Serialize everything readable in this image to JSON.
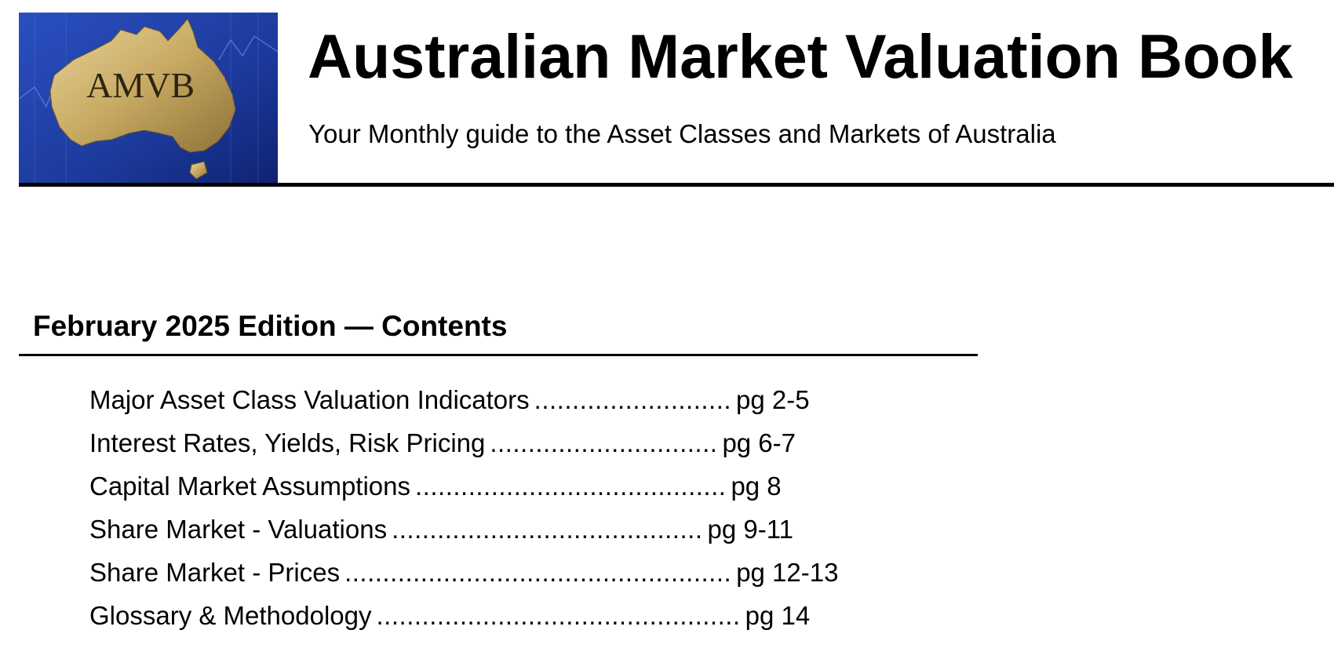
{
  "header": {
    "logo_text": "AMVB",
    "title": "Australian Market Valuation Book",
    "subtitle": "Your Monthly guide to the Asset Classes and Markets of Australia"
  },
  "contents": {
    "heading": "February 2025 Edition — Contents",
    "items": [
      {
        "title": "Major Asset Class Valuation Indicators",
        "dots": "..........................",
        "page": "pg 2-5"
      },
      {
        "title": "Interest Rates, Yields, Risk Pricing",
        "dots": "..............................",
        "page": "pg 6-7"
      },
      {
        "title": "Capital Market Assumptions",
        "dots": ".........................................",
        "page": "pg 8"
      },
      {
        "title": "Share Market - Valuations",
        "dots": ".........................................",
        "page": "pg 9-11"
      },
      {
        "title": "Share Market - Prices",
        "dots": "...................................................",
        "page": "pg 12-13"
      },
      {
        "title": "Glossary & Methodology",
        "dots": "................................................",
        "page": "pg 14"
      }
    ]
  },
  "colors": {
    "logo_background": "#1f3a9a",
    "logo_map": "#c9ad6a",
    "text": "#000000"
  }
}
